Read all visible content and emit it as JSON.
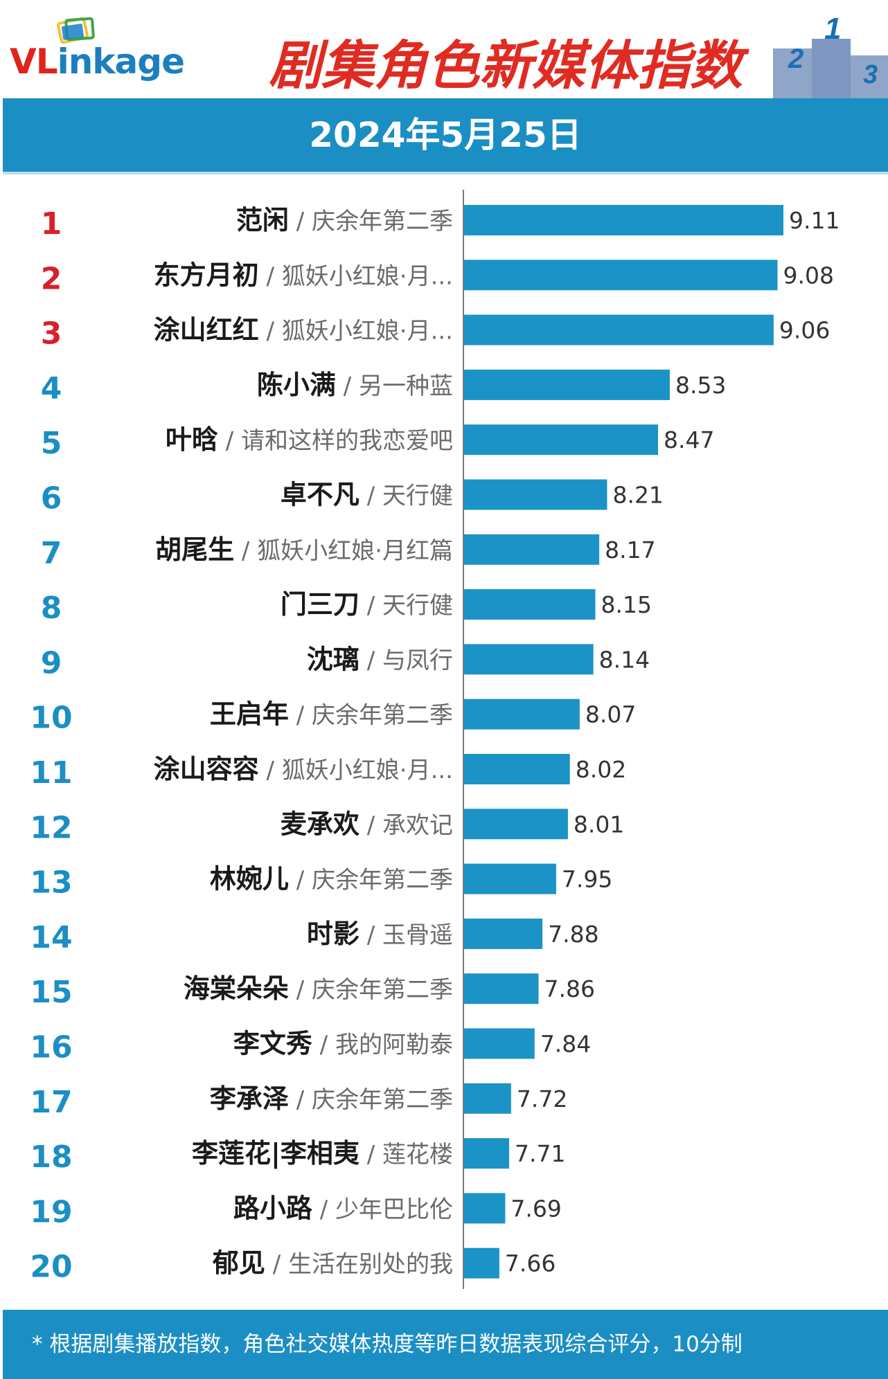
{
  "header": {
    "logo_text": "VLinkage",
    "title": "剧集角色新媒体指数",
    "date": "2024年5月25日",
    "podium_digits": [
      "2",
      "1",
      "3"
    ]
  },
  "colors": {
    "brand_blue": "#1b8ec4",
    "bar": "#1b93c6",
    "title_red": "#e02b22",
    "rank_top_red": "#d7212a",
    "rank_blue": "#1b8ec4",
    "name_dark": "#1a1a1a",
    "show_gray": "#6b6b6b",
    "logo_red": "#e0241c",
    "logo_blue": "#1b7fbf"
  },
  "chart_data": {
    "type": "bar",
    "orientation": "horizontal",
    "categories": [
      "范闲 / 庆余年第二季",
      "东方月初 / 狐妖小红娘·月...",
      "涂山红红 / 狐妖小红娘·月...",
      "陈小满 / 另一种蓝",
      "叶晗 / 请和这样的我恋爱吧",
      "卓不凡 / 天行健",
      "胡尾生 / 狐妖小红娘·月红篇",
      "门三刀 / 天行健",
      "沈璃 / 与凤行",
      "王启年 / 庆余年第二季",
      "涂山容容 / 狐妖小红娘·月...",
      "麦承欢 / 承欢记",
      "林婉儿 / 庆余年第二季",
      "时影 / 玉骨遥",
      "海棠朵朵 / 庆余年第二季",
      "李文秀 / 我的阿勒泰",
      "李承泽 / 庆余年第二季",
      "李莲花|李相夷 / 莲花楼",
      "路小路 / 少年巴比伦",
      "郁见 / 生活在别处的我"
    ],
    "rows": [
      {
        "rank": "1",
        "name": "范闲",
        "show": "庆余年第二季",
        "value": 9.11,
        "label": "9.11"
      },
      {
        "rank": "2",
        "name": "东方月初",
        "show": "狐妖小红娘·月...",
        "value": 9.08,
        "label": "9.08"
      },
      {
        "rank": "3",
        "name": "涂山红红",
        "show": "狐妖小红娘·月...",
        "value": 9.06,
        "label": "9.06"
      },
      {
        "rank": "4",
        "name": "陈小满",
        "show": "另一种蓝",
        "value": 8.53,
        "label": "8.53"
      },
      {
        "rank": "5",
        "name": "叶晗",
        "show": "请和这样的我恋爱吧",
        "value": 8.47,
        "label": "8.47"
      },
      {
        "rank": "6",
        "name": "卓不凡",
        "show": "天行健",
        "value": 8.21,
        "label": "8.21"
      },
      {
        "rank": "7",
        "name": "胡尾生",
        "show": "狐妖小红娘·月红篇",
        "value": 8.17,
        "label": "8.17"
      },
      {
        "rank": "8",
        "name": "门三刀",
        "show": "天行健",
        "value": 8.15,
        "label": "8.15"
      },
      {
        "rank": "9",
        "name": "沈璃",
        "show": "与凤行",
        "value": 8.14,
        "label": "8.14"
      },
      {
        "rank": "10",
        "name": "王启年",
        "show": "庆余年第二季",
        "value": 8.07,
        "label": "8.07"
      },
      {
        "rank": "11",
        "name": "涂山容容",
        "show": "狐妖小红娘·月...",
        "value": 8.02,
        "label": "8.02"
      },
      {
        "rank": "12",
        "name": "麦承欢",
        "show": "承欢记",
        "value": 8.01,
        "label": "8.01"
      },
      {
        "rank": "13",
        "name": "林婉儿",
        "show": "庆余年第二季",
        "value": 7.95,
        "label": "7.95"
      },
      {
        "rank": "14",
        "name": "时影",
        "show": "玉骨遥",
        "value": 7.88,
        "label": "7.88"
      },
      {
        "rank": "15",
        "name": "海棠朵朵",
        "show": "庆余年第二季",
        "value": 7.86,
        "label": "7.86"
      },
      {
        "rank": "16",
        "name": "李文秀",
        "show": "我的阿勒泰",
        "value": 7.84,
        "label": "7.84"
      },
      {
        "rank": "17",
        "name": "李承泽",
        "show": "庆余年第二季",
        "value": 7.72,
        "label": "7.72"
      },
      {
        "rank": "18",
        "name": "李莲花|李相夷",
        "show": "莲花楼",
        "value": 7.71,
        "label": "7.71"
      },
      {
        "rank": "19",
        "name": "路小路",
        "show": "少年巴比伦",
        "value": 7.69,
        "label": "7.69"
      },
      {
        "rank": "20",
        "name": "郁见",
        "show": "生活在别处的我",
        "value": 7.66,
        "label": "7.66"
      }
    ],
    "values": [
      9.11,
      9.08,
      9.06,
      8.53,
      8.47,
      8.21,
      8.17,
      8.15,
      8.14,
      8.07,
      8.02,
      8.01,
      7.95,
      7.88,
      7.86,
      7.84,
      7.72,
      7.71,
      7.69,
      7.66
    ],
    "separator": "/",
    "xlim": [
      7.48,
      9.11
    ],
    "grid": false,
    "legend": "none",
    "top_ranks_highlighted": 3
  },
  "footer": {
    "note": "* 根据剧集播放指数，角色社交媒体热度等昨日数据表现综合评分，10分制"
  }
}
